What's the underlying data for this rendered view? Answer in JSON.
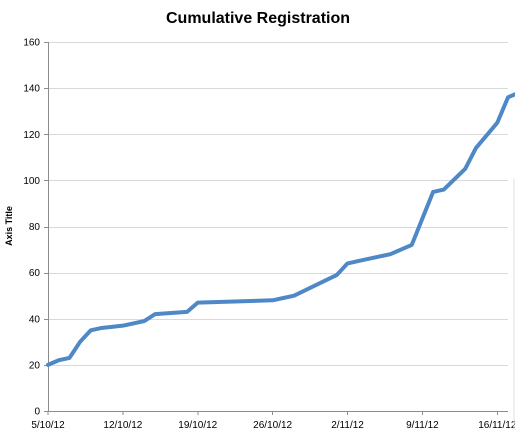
{
  "chart_data": {
    "type": "line",
    "title": "Cumulative Registration",
    "xlabel": "",
    "ylabel": "Axis Title",
    "ylim": [
      0,
      160
    ],
    "yticks": [
      0,
      20,
      40,
      60,
      80,
      100,
      120,
      140,
      160
    ],
    "xlim": [
      "5/10/12",
      "17/11/12"
    ],
    "xticks": [
      "5/10/12",
      "12/10/12",
      "19/10/12",
      "26/10/12",
      "2/11/12",
      "9/11/12",
      "16/11/12"
    ],
    "grid": true,
    "legend": "none",
    "series": [
      {
        "color": "#4f88c6",
        "points": [
          {
            "x": "5/10/12",
            "y": 20
          },
          {
            "x": "6/10/12",
            "y": 22
          },
          {
            "x": "7/10/12",
            "y": 23
          },
          {
            "x": "8/10/12",
            "y": 30
          },
          {
            "x": "9/10/12",
            "y": 35
          },
          {
            "x": "10/10/12",
            "y": 36
          },
          {
            "x": "12/10/12",
            "y": 37
          },
          {
            "x": "14/10/12",
            "y": 39
          },
          {
            "x": "15/10/12",
            "y": 42
          },
          {
            "x": "18/10/12",
            "y": 43
          },
          {
            "x": "19/10/12",
            "y": 47
          },
          {
            "x": "26/10/12",
            "y": 48
          },
          {
            "x": "27/10/12",
            "y": 49
          },
          {
            "x": "28/10/12",
            "y": 50
          },
          {
            "x": "1/11/12",
            "y": 59
          },
          {
            "x": "2/11/12",
            "y": 64
          },
          {
            "x": "3/11/12",
            "y": 65
          },
          {
            "x": "5/11/12",
            "y": 67
          },
          {
            "x": "6/11/12",
            "y": 68
          },
          {
            "x": "8/11/12",
            "y": 72
          },
          {
            "x": "10/11/12",
            "y": 95
          },
          {
            "x": "11/11/12",
            "y": 96
          },
          {
            "x": "13/11/12",
            "y": 105
          },
          {
            "x": "14/11/12",
            "y": 114
          },
          {
            "x": "16/11/12",
            "y": 125
          },
          {
            "x": "17/11/12",
            "y": 136
          },
          {
            "x": "18/11/12",
            "y": 138
          }
        ]
      }
    ]
  }
}
